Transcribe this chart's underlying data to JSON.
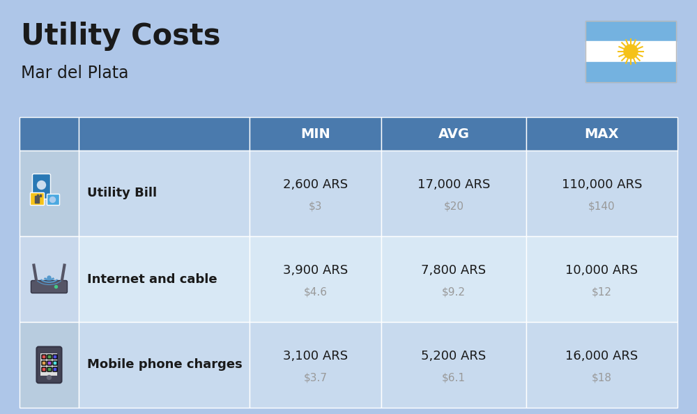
{
  "title": "Utility Costs",
  "subtitle": "Mar del Plata",
  "background_color": "#aec6e8",
  "header_color": "#4a7aad",
  "header_text_color": "#ffffff",
  "row_color_odd": "#c8daee",
  "row_color_even": "#d8e8f5",
  "icon_col_color_odd": "#b8ccdf",
  "icon_col_color_even": "#c8d8ec",
  "text_color": "#1a1a1a",
  "subtext_color": "#999999",
  "border_color": "#ffffff",
  "col_headers": [
    "MIN",
    "AVG",
    "MAX"
  ],
  "rows": [
    {
      "label": "Utility Bill",
      "min_ars": "2,600 ARS",
      "min_usd": "$3",
      "avg_ars": "17,000 ARS",
      "avg_usd": "$20",
      "max_ars": "110,000 ARS",
      "max_usd": "$140",
      "icon": "utility"
    },
    {
      "label": "Internet and cable",
      "min_ars": "3,900 ARS",
      "min_usd": "$4.6",
      "avg_ars": "7,800 ARS",
      "avg_usd": "$9.2",
      "max_ars": "10,000 ARS",
      "max_usd": "$12",
      "icon": "internet"
    },
    {
      "label": "Mobile phone charges",
      "min_ars": "3,100 ARS",
      "min_usd": "$3.7",
      "avg_ars": "5,200 ARS",
      "avg_usd": "$6.1",
      "max_ars": "16,000 ARS",
      "max_usd": "$18",
      "icon": "mobile"
    }
  ]
}
